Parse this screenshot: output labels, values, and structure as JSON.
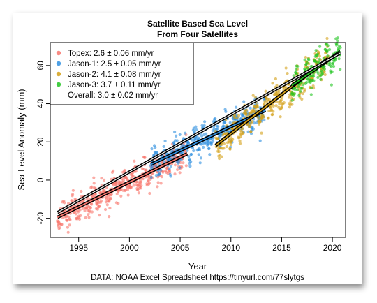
{
  "chart_data": {
    "type": "scatter",
    "title": "Satellite Based Sea Level",
    "subtitle": "From Four Satellites",
    "xlabel": "Year",
    "ylabel": "Sea Level Anomaly (mm)",
    "xlim": [
      1992.2,
      2021.3
    ],
    "ylim": [
      -30,
      72
    ],
    "xticks": [
      1995,
      2000,
      2005,
      2010,
      2015,
      2020
    ],
    "yticks": [
      -20,
      0,
      20,
      40,
      60
    ],
    "source": "DATA: NOAA Excel Spreadsheet https://tinyurl.com/77slytgs",
    "legend_position": "top-left",
    "series": [
      {
        "name": "Topex",
        "rate_label": "2.6 ± 0.06 mm/yr",
        "color": "#f8766d",
        "x_range": [
          1992.9,
          2005.7
        ],
        "trend": [
          [
            1992.9,
            -19.5
          ],
          [
            2005.7,
            13.8
          ]
        ]
      },
      {
        "name": "Jason-1",
        "rate_label": "2.5 ± 0.05 mm/yr",
        "color": "#2f8fe0",
        "x_range": [
          2002.1,
          2013.4
        ],
        "trend": [
          [
            2002.1,
            8.2
          ],
          [
            2013.4,
            36.5
          ]
        ]
      },
      {
        "name": "Jason-2",
        "rate_label": "4.1 ± 0.08 mm/yr",
        "color": "#d4a017",
        "x_range": [
          2008.5,
          2019.6
        ],
        "trend": [
          [
            2008.5,
            18.2
          ],
          [
            2019.6,
            63.7
          ]
        ]
      },
      {
        "name": "Jason-3",
        "rate_label": "3.7 ± 0.11 mm/yr",
        "color": "#22c422",
        "x_range": [
          2016.0,
          2020.8
        ],
        "trend": [
          [
            2016.0,
            49.5
          ],
          [
            2020.8,
            67.3
          ]
        ]
      }
    ],
    "overall": {
      "name": "Overall",
      "rate_label": "3.0 ± 0.02 mm/yr",
      "trend": [
        [
          1992.9,
          -17.0
        ],
        [
          2020.8,
          66.6
        ]
      ]
    }
  }
}
